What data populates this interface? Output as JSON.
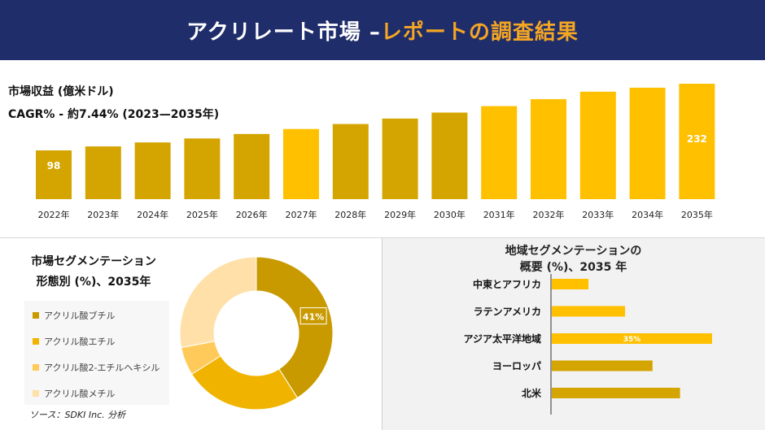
{
  "header": {
    "title_main": "アクリレート市場 –",
    "title_accent": "レポートの調査結果"
  },
  "revenue": {
    "label": "市場収益 (億米ドル)",
    "cagr": "CAGR% - 約7.44% (2023—2035年)"
  },
  "segment_left": {
    "title_line1": "市場セグメンテーション",
    "title_line2": "形態別 (%)、2035年"
  },
  "segment_right": {
    "title_line1": "地域セグメンテーションの",
    "title_line2": "概要 (%)、2035 年"
  },
  "source": "ソース：SDKI Inc. 分析",
  "colors": {
    "header_bg": "#1f2d6b",
    "accent": "#f5a623",
    "bar_dark": "#d4a400",
    "bar_light": "#ffc000"
  },
  "chart_data": [
    {
      "type": "bar",
      "categories": [
        "2022年",
        "2023年",
        "2024年",
        "2025年",
        "2026年",
        "2027年",
        "2028年",
        "2029年",
        "2030年",
        "2031年",
        "2032年",
        "2033年",
        "2034年",
        "2035年"
      ],
      "values": [
        98,
        106,
        114,
        122,
        131,
        141,
        151,
        162,
        174,
        187,
        201,
        216,
        224,
        232
      ],
      "value_labels": {
        "0": "98",
        "13": "232"
      },
      "ylim": [
        0,
        240
      ]
    },
    {
      "type": "pie",
      "labels": [
        "アクリル酸ブチル",
        "アクリル酸エチル",
        "アクリル酸2-エチルヘキシル",
        "アクリル酸メチル"
      ],
      "values": [
        41,
        25,
        6,
        28
      ],
      "colors": [
        "#c99a00",
        "#f0b400",
        "#ffca5a",
        "#ffe0a8"
      ],
      "data_labels": {
        "0": "41%"
      }
    },
    {
      "type": "bar",
      "orientation": "horizontal",
      "categories": [
        "中東とアフリカ",
        "ラテンアメリカ",
        "アジア太平洋地域",
        "ヨーロッパ",
        "北米"
      ],
      "values": [
        8,
        16,
        35,
        22,
        28
      ],
      "colors": [
        "#ffc000",
        "#ffc000",
        "#ffc000",
        "#d4a400",
        "#d4a400"
      ],
      "data_labels": {
        "2": "35%"
      },
      "xlim": [
        0,
        40
      ]
    }
  ]
}
